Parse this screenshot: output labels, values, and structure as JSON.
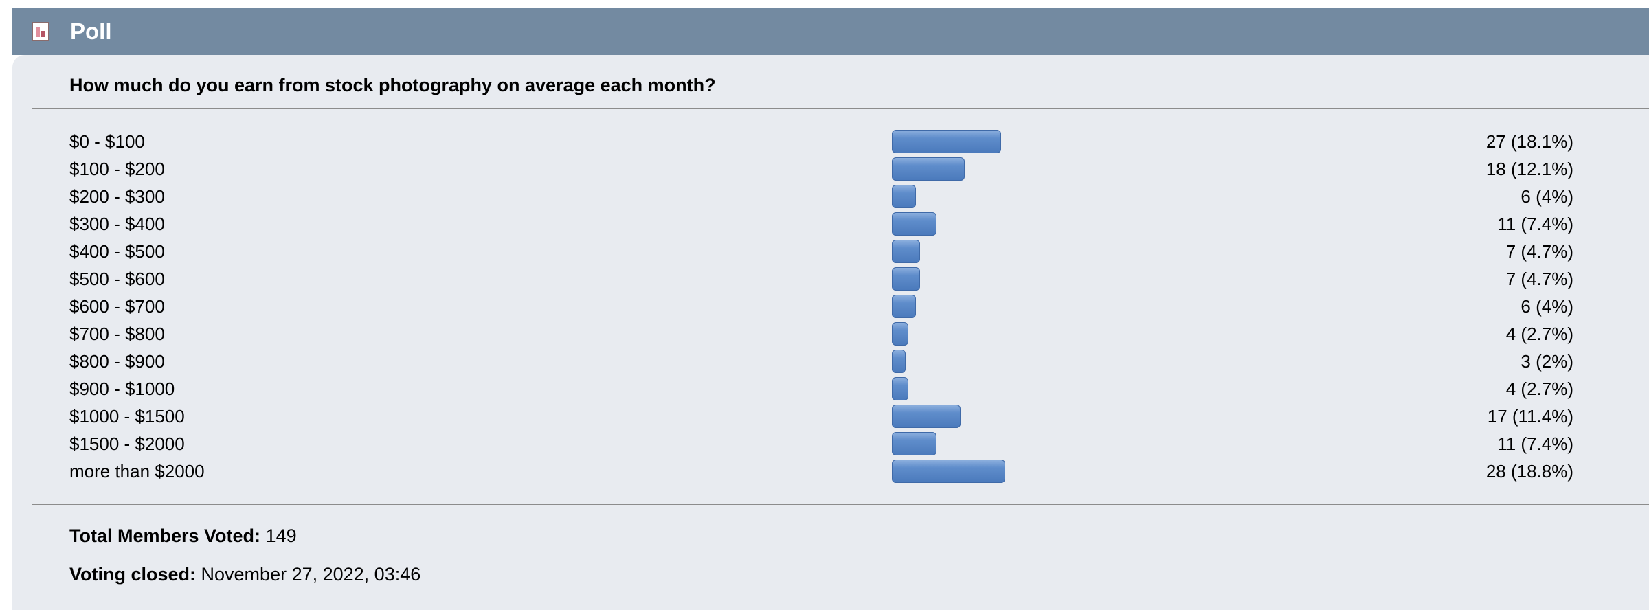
{
  "header": {
    "title": "Poll",
    "icon": "poll-chart-icon"
  },
  "question": "How much do you earn from stock photography on average each month?",
  "options": [
    {
      "label": "$0 - $100",
      "votes": 27,
      "result": "27 (18.1%)",
      "percent": 18.1
    },
    {
      "label": "$100 - $200",
      "votes": 18,
      "result": "18 (12.1%)",
      "percent": 12.1
    },
    {
      "label": "$200 - $300",
      "votes": 6,
      "result": "6 (4%)",
      "percent": 4
    },
    {
      "label": "$300 - $400",
      "votes": 11,
      "result": "11 (7.4%)",
      "percent": 7.4
    },
    {
      "label": "$400 - $500",
      "votes": 7,
      "result": "7 (4.7%)",
      "percent": 4.7
    },
    {
      "label": "$500 - $600",
      "votes": 7,
      "result": "7 (4.7%)",
      "percent": 4.7
    },
    {
      "label": "$600 - $700",
      "votes": 6,
      "result": "6 (4%)",
      "percent": 4
    },
    {
      "label": "$700 - $800",
      "votes": 4,
      "result": "4 (2.7%)",
      "percent": 2.7
    },
    {
      "label": "$800 - $900",
      "votes": 3,
      "result": "3 (2%)",
      "percent": 2
    },
    {
      "label": "$900 - $1000",
      "votes": 4,
      "result": "4 (2.7%)",
      "percent": 2.7
    },
    {
      "label": "$1000 - $1500",
      "votes": 17,
      "result": "17 (11.4%)",
      "percent": 11.4
    },
    {
      "label": "$1500 - $2000",
      "votes": 11,
      "result": "11 (7.4%)",
      "percent": 7.4
    },
    {
      "label": "more than $2000",
      "votes": 28,
      "result": "28 (18.8%)",
      "percent": 18.8
    }
  ],
  "footer": {
    "total_label": "Total Members Voted:",
    "total_value": "149",
    "closed_label": "Voting closed:",
    "closed_value": "November 27, 2022, 03:46"
  },
  "colors": {
    "header_bg": "#738aa1",
    "body_bg": "#e8ebf0",
    "bar": "#5f8dcb"
  }
}
